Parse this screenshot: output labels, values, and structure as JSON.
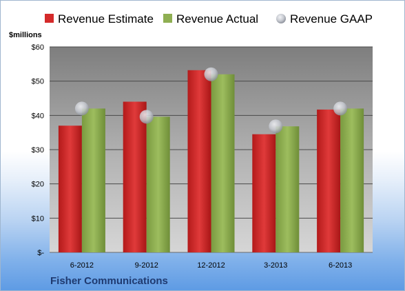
{
  "chart_data": {
    "type": "bar",
    "unit_label": "$millions",
    "company": "Fisher Communications",
    "categories": [
      "6-2012",
      "9-2012",
      "12-2012",
      "3-2013",
      "6-2013"
    ],
    "ylim": [
      0,
      60
    ],
    "yticks": [
      {
        "value": 0,
        "label": "$-"
      },
      {
        "value": 10,
        "label": "$10"
      },
      {
        "value": 20,
        "label": "$20"
      },
      {
        "value": 30,
        "label": "$30"
      },
      {
        "value": 40,
        "label": "$40"
      },
      {
        "value": 50,
        "label": "$50"
      },
      {
        "value": 60,
        "label": "$60"
      }
    ],
    "grid": true,
    "legend_position": "top",
    "series": [
      {
        "name": "Revenue Estimate",
        "kind": "bar",
        "color": "#d42a2a",
        "values": [
          37,
          44,
          53.2,
          34.5,
          41.7
        ]
      },
      {
        "name": "Revenue Actual",
        "kind": "bar",
        "color": "#8faf52",
        "values": [
          42,
          39.6,
          52,
          36.8,
          42
        ]
      },
      {
        "name": "Revenue GAAP",
        "kind": "marker",
        "color": "#b9bcc4",
        "values": [
          42,
          39.6,
          52,
          36.8,
          42
        ]
      }
    ]
  }
}
